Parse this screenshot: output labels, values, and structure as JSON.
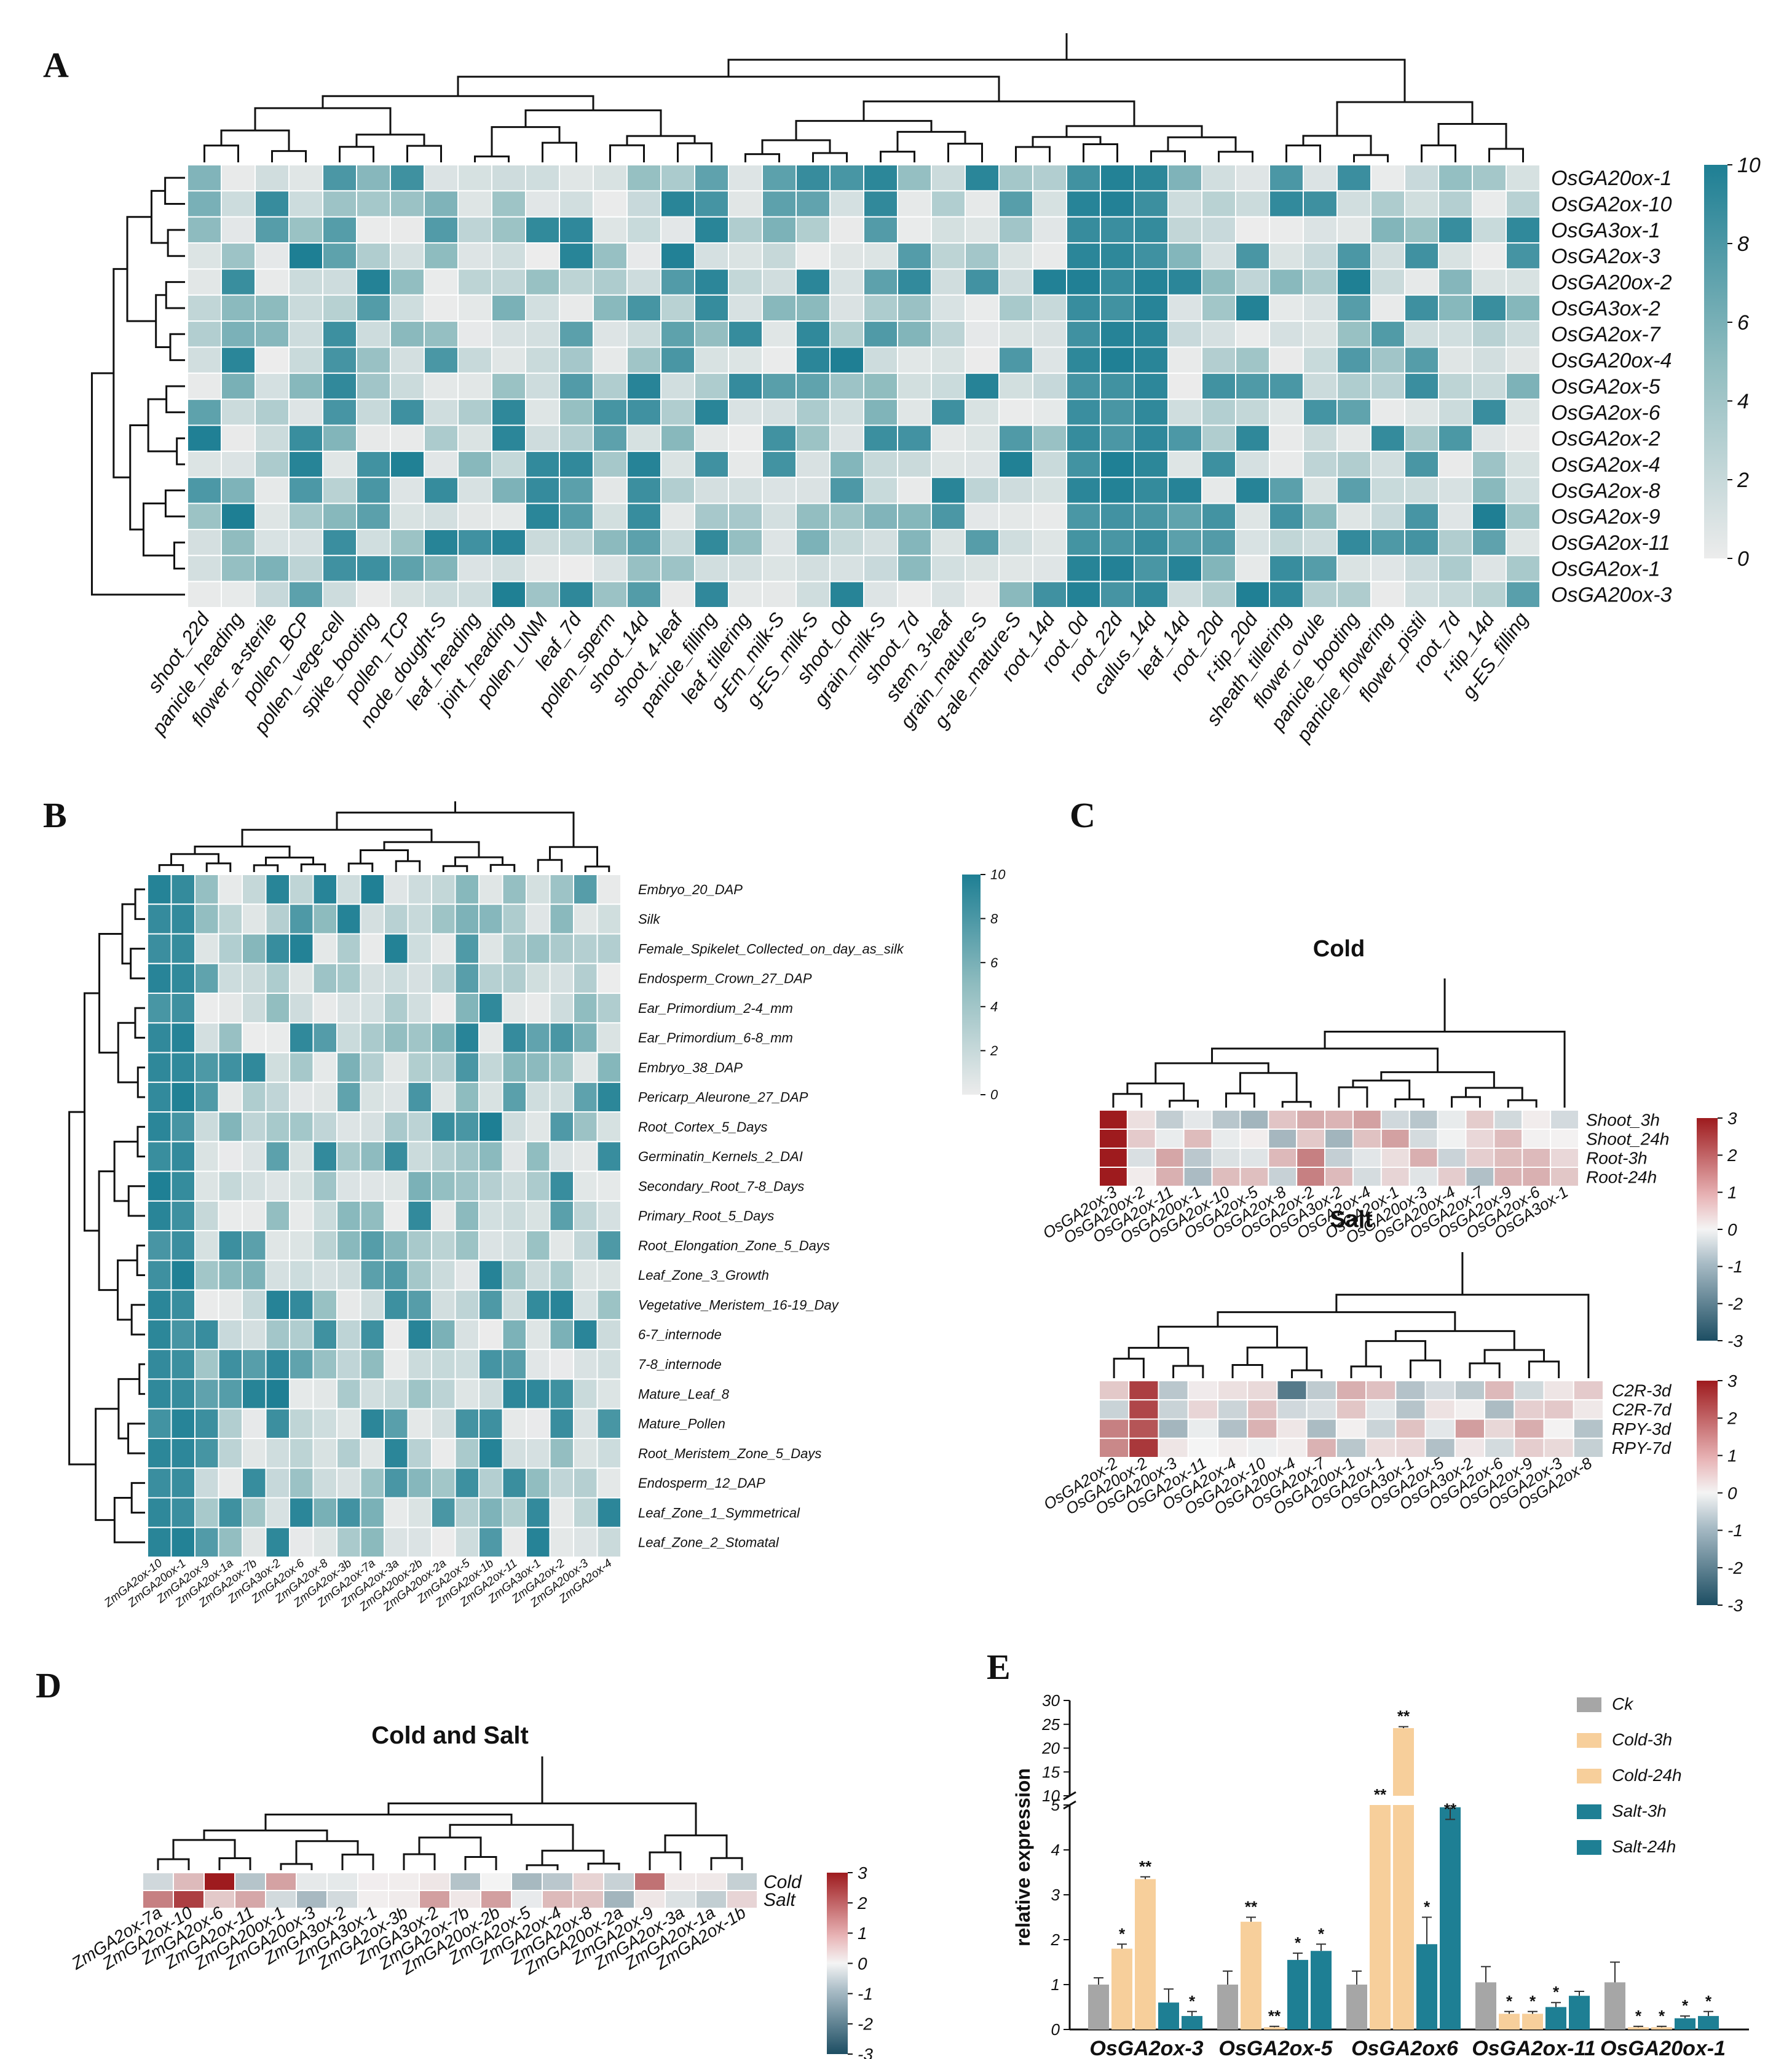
{
  "panels": {
    "A": {
      "letter": "A",
      "rows": [
        "OsGA20ox-1",
        "OsGA2ox-10",
        "OsGA3ox-1",
        "OsGA2ox-3",
        "OsGA20ox-2",
        "OsGA3ox-2",
        "OsGA2ox-7",
        "OsGA20ox-4",
        "OsGA2ox-5",
        "OsGA2ox-6",
        "OsGA2ox-2",
        "OsGA2ox-4",
        "OsGA2ox-8",
        "OsGA2ox-9",
        "OsGA2ox-11",
        "OsGA2ox-1",
        "OsGA20ox-3"
      ],
      "columns": [
        "shoot_22d",
        "panicle_heading",
        "flower_a-sterile",
        "pollen_BCP",
        "pollen_vege-cell",
        "spike_booting",
        "pollen_TCP",
        "node_dought-S",
        "leaf_heading",
        "joint_heading",
        "pollen_UNM",
        "leaf_7d",
        "pollen_sperm",
        "shoot_14d",
        "shoot_4-leaf",
        "panicle_filling",
        "leaf_tillering",
        "g-Em_milk-S",
        "g-ES_milk-S",
        "shoot_0d",
        "grain_milk-S",
        "shoot_7d",
        "stem_3-leaf",
        "grain_mature-S",
        "g-ale_mature-S",
        "root_14d",
        "root_0d",
        "root_22d",
        "callus_14d",
        "leaf_14d",
        "root_20d",
        "r-tip_20d",
        "sheath_tillering",
        "flower_ovule",
        "panicle_booting",
        "panicle_flowering",
        "flower_pistil",
        "root_7d",
        "r-tip_14d",
        "g-ES_filling"
      ],
      "colorbar_ticks": [
        "10",
        "8",
        "6",
        "4",
        "2",
        "0"
      ],
      "color_low": "#ececec",
      "color_high": "#1e7f94"
    },
    "B": {
      "letter": "B",
      "rows": [
        "Embryo_20_DAP",
        "Silk",
        "Female_Spikelet_Collected_on_day_as_silk",
        "Endosperm_Crown_27_DAP",
        "Ear_Primordium_2-4_mm",
        "Ear_Primordium_6-8_mm",
        "Embryo_38_DAP",
        "Pericarp_Aleurone_27_DAP",
        "Root_Cortex_5_Days",
        "Germinatin_Kernels_2_DAI",
        "Secondary_Root_7-8_Days",
        "Primary_Root_5_Days",
        "Root_Elongation_Zone_5_Days",
        "Leaf_Zone_3_Growth",
        "Vegetative_Meristem_16-19_Day",
        "6-7_internode",
        "7-8_internode",
        "Mature_Leaf_8",
        "Mature_Pollen",
        "Root_Meristem_Zone_5_Days",
        "Endosperm_12_DAP",
        "Leaf_Zone_1_Symmetrical",
        "Leaf_Zone_2_Stomatal"
      ],
      "columns": [
        "ZmGA2ox-10",
        "ZmGA20ox-1",
        "ZmGA2ox-9",
        "ZmGA2ox-1a",
        "ZmGA2ox-7b",
        "ZmGA3ox-2",
        "ZmGA2ox-6",
        "ZmGA2ox-8",
        "ZmGA2ox-3b",
        "ZmGA2ox-7a",
        "ZmGA2ox-3a",
        "ZmGA20ox-2b",
        "ZmGA20ox-2a",
        "ZmGA2ox-5",
        "ZmGA2ox-1b",
        "ZmGA2ox-11",
        "ZmGA3ox-1",
        "ZmGA2ox-2",
        "ZmGA20ox-3",
        "ZmGA2ox-4"
      ],
      "colorbar_ticks": [
        "10",
        "8",
        "6",
        "4",
        "2",
        "0"
      ]
    },
    "C_cold": {
      "letter": "C",
      "title": "Cold",
      "rows": [
        "Shoot_3h",
        "Shoot_24h",
        "Root-3h",
        "Root-24h"
      ],
      "columns": [
        "OsGA2ox-3",
        "OsGA20ox-2",
        "OsGA2ox-11",
        "OsGA20ox-1",
        "OsGA2ox-10",
        "OsGA2ox-5",
        "OsGA2ox-8",
        "OsGA2ox-2",
        "OsGA3ox-2",
        "OsGA2ox-4",
        "OsGA2ox-1",
        "OsGA20ox-3",
        "OsGA20ox-4",
        "OsGA2ox-7",
        "OsGA2ox-9",
        "OsGA2ox-6",
        "OsGA3ox-1"
      ],
      "colorbar_ticks": [
        "3",
        "2",
        "1",
        "0",
        "-1",
        "-2",
        "-3"
      ]
    },
    "C_salt": {
      "title": "Salt",
      "rows": [
        "C2R-3d",
        "C2R-7d",
        "RPY-3d",
        "RPY-7d"
      ],
      "columns": [
        "OsGA2ox-2",
        "OsGA20ox-2",
        "OsGA20ox-3",
        "OsGA2ox-11",
        "OsGA2ox-4",
        "OsGA2ox-10",
        "OsGA20ox-4",
        "OsGA2ox-7",
        "OsGA20ox-1",
        "OsGA2ox-1",
        "OsGA3ox-1",
        "OsGA2ox-5",
        "OsGA3ox-2",
        "OsGA2ox-6",
        "OsGA2ox-9",
        "OsGA2ox-3",
        "OsGA2ox-8"
      ],
      "colorbar_ticks": [
        "3",
        "2",
        "1",
        "0",
        "-1",
        "-2",
        "-3"
      ]
    },
    "D": {
      "letter": "D",
      "title": "Cold and Salt",
      "rows": [
        "Cold",
        "Salt"
      ],
      "columns": [
        "ZmGA2ox-7a",
        "ZmGA2ox-10",
        "ZmGA2ox-6",
        "ZmGA2ox-11",
        "ZmGA20ox-1",
        "ZmGA20ox-3",
        "ZmGA3ox-2",
        "ZmGA3ox-1",
        "ZmGA2ox-3b",
        "ZmGA3ox-2",
        "ZmGA2ox-7b",
        "ZmGA20ox-2b",
        "ZmGA2ox-5",
        "ZmGA2ox-4",
        "ZmGA2ox-8",
        "ZmGA20ox-2a",
        "ZmGA2ox-9",
        "ZmGA2ox-3a",
        "ZmGA2ox-1a",
        "ZmGA2ox-1b"
      ],
      "colorbar_ticks": [
        "3",
        "2",
        "1",
        "0",
        "-1",
        "-2",
        "-3"
      ]
    }
  },
  "chart_data": [
    {
      "type": "bar",
      "panel": "E",
      "letter": "E",
      "ylabel": "relative expression",
      "ylim_lower": [
        0,
        5
      ],
      "ylim_upper": [
        10,
        30
      ],
      "yticks_lower": [
        "0",
        "1",
        "2",
        "3",
        "4",
        "5"
      ],
      "yticks_upper": [
        "10",
        "15",
        "20",
        "25",
        "30"
      ],
      "categories": [
        "OsGA2ox-3",
        "OsGA2ox-5",
        "OsGA2ox6",
        "OsGA2ox-11",
        "OsGA20ox-1"
      ],
      "series": [
        {
          "name": "Ck",
          "color": "#a6a6a6",
          "values": [
            1.0,
            1.0,
            1.0,
            1.05,
            1.05
          ],
          "errors": [
            0.15,
            0.3,
            0.3,
            0.35,
            0.45
          ],
          "marks": [
            "",
            "",
            "",
            "",
            ""
          ]
        },
        {
          "name": "Cold-3h",
          "color": "#f7cf9b",
          "values": [
            1.8,
            2.4,
            5.0,
            0.35,
            0.05
          ],
          "errors": [
            0.1,
            0.1,
            0.0,
            0.05,
            0.02
          ],
          "marks": [
            "*",
            "**",
            "**",
            "*",
            "*"
          ]
        },
        {
          "name": "Cold-24h",
          "color": "#f7cf9b",
          "values": [
            3.35,
            0.05,
            24.2,
            0.35,
            0.05
          ],
          "errors": [
            0.05,
            0.02,
            0.3,
            0.05,
            0.02
          ],
          "marks": [
            "**",
            "**",
            "**",
            "*",
            "*"
          ]
        },
        {
          "name": "Salt-3h",
          "color": "#1e7f94",
          "values": [
            0.6,
            1.55,
            1.9,
            0.5,
            0.25
          ],
          "errors": [
            0.3,
            0.15,
            0.6,
            0.1,
            0.05
          ],
          "marks": [
            "",
            "*",
            "*",
            "*",
            "*"
          ]
        },
        {
          "name": "Salt-24h",
          "color": "#1e7f94",
          "values": [
            0.3,
            1.75,
            4.95,
            0.75,
            0.3
          ],
          "errors": [
            0.1,
            0.15,
            0.1,
            0.1,
            0.1
          ],
          "marks": [
            "*",
            "*",
            "**",
            "",
            "*"
          ]
        }
      ]
    }
  ]
}
